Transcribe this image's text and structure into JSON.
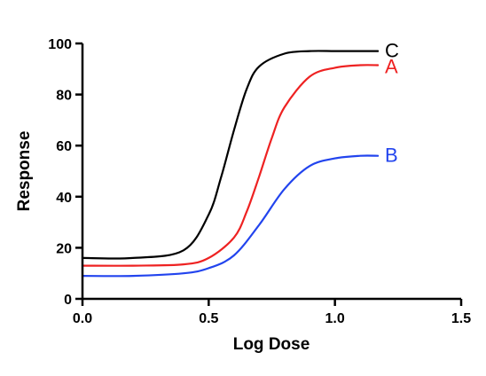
{
  "chart_data": {
    "type": "line",
    "xlabel": "Log Dose",
    "ylabel": "Response",
    "xlim": [
      0.0,
      1.5
    ],
    "ylim": [
      0,
      100
    ],
    "xticks": [
      "0.0",
      "0.5",
      "1.0",
      "1.5"
    ],
    "yticks": [
      "0",
      "20",
      "40",
      "60",
      "80",
      "100"
    ],
    "grid": false,
    "legend": "inline labels at right end of each curve",
    "series": [
      {
        "name": "C",
        "color": "#000000",
        "x": [
          0.0,
          0.2,
          0.4,
          0.5,
          0.55,
          0.6,
          0.65,
          0.7,
          0.8,
          0.9,
          1.0,
          1.1,
          1.17
        ],
        "y": [
          16,
          16,
          19,
          33,
          48,
          66,
          82,
          91,
          96,
          97,
          97,
          97,
          97
        ]
      },
      {
        "name": "A",
        "color": "#ee2222",
        "x": [
          0.0,
          0.2,
          0.4,
          0.5,
          0.6,
          0.65,
          0.7,
          0.75,
          0.8,
          0.9,
          1.0,
          1.1,
          1.17
        ],
        "y": [
          13,
          13,
          13.5,
          16,
          24,
          34,
          48,
          63,
          75,
          87,
          90.5,
          91.5,
          91.5
        ]
      },
      {
        "name": "B",
        "color": "#2244ee",
        "x": [
          0.0,
          0.2,
          0.4,
          0.5,
          0.6,
          0.7,
          0.8,
          0.9,
          1.0,
          1.1,
          1.17
        ],
        "y": [
          9,
          9,
          10,
          12,
          17,
          29,
          43,
          52,
          55,
          56,
          56
        ]
      }
    ]
  }
}
